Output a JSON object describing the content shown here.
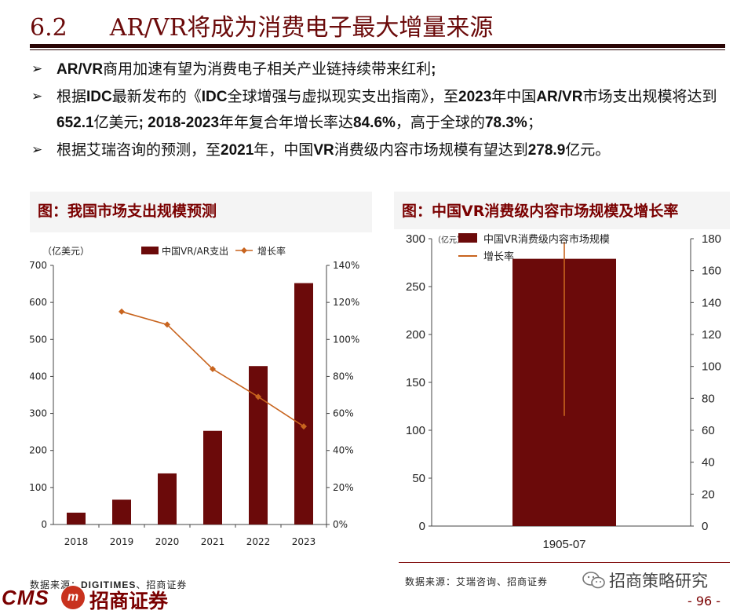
{
  "title": {
    "number": "6.2",
    "text": "AR/VR将成为消费电子最大增量来源"
  },
  "bullets": [
    {
      "parts": [
        {
          "t": "AR/VR",
          "b": true
        },
        {
          "t": "商用加速有望为消费电子相关产业链持续带来红利",
          "b": false
        },
        {
          "t": ";",
          "b": true
        }
      ]
    },
    {
      "parts": [
        {
          "t": "根据",
          "b": false
        },
        {
          "t": "IDC",
          "b": true
        },
        {
          "t": "最新发布的《",
          "b": false
        },
        {
          "t": "IDC",
          "b": true
        },
        {
          "t": "全球增强与虚拟现实支出指南》，至",
          "b": false
        },
        {
          "t": "2023",
          "b": true
        },
        {
          "t": "年中国",
          "b": false
        },
        {
          "t": "AR/VR",
          "b": true
        },
        {
          "t": "市场支出规模将达到",
          "b": false
        },
        {
          "t": "652.1",
          "b": true
        },
        {
          "t": "亿美元",
          "b": false
        },
        {
          "t": "; 2018-2023",
          "b": true
        },
        {
          "t": "年年复合年增长率达",
          "b": false
        },
        {
          "t": "84.6%",
          "b": true
        },
        {
          "t": "，高于全球的",
          "b": false
        },
        {
          "t": "78.3%",
          "b": true
        },
        {
          "t": "；",
          "b": false
        }
      ]
    },
    {
      "parts": [
        {
          "t": "根据艾瑞咨询的预测，至",
          "b": false
        },
        {
          "t": "2021",
          "b": true
        },
        {
          "t": "年，中国",
          "b": false
        },
        {
          "t": "VR",
          "b": true
        },
        {
          "t": "消费级内容市场规模有望达到",
          "b": false
        },
        {
          "t": "278.9",
          "b": true
        },
        {
          "t": "亿元。",
          "b": false
        }
      ]
    }
  ],
  "bullet_marker": "➢",
  "left_panel": {
    "title": "图：我国市场支出规模预测",
    "source_prefix": "数据来源：",
    "source_bold": "DIGITIMES",
    "source_suffix": "、招商证券"
  },
  "right_panel": {
    "title": "图：中国VR消费级内容市场规模及增长率",
    "source": "数据来源：艾瑞咨询、招商证券"
  },
  "footer": {
    "cms": "CMS",
    "emblem": "m",
    "brand": "招商证券",
    "wechat": "招商策略研究",
    "page": "- 96 -"
  },
  "colors": {
    "bar": "#6b0a0a",
    "line": "#c8641e",
    "title": "#6b0a0a"
  },
  "chart_data": [
    {
      "type": "bar",
      "title": "",
      "unit_label": "（亿美元）",
      "categories": [
        "2018",
        "2019",
        "2020",
        "2021",
        "2022",
        "2023"
      ],
      "series": [
        {
          "name": "中国VR/AR支出",
          "kind": "bar",
          "axis": "left",
          "values": [
            32,
            67,
            138,
            253,
            428,
            652.1
          ]
        },
        {
          "name": "增长率",
          "kind": "line",
          "axis": "right",
          "values": [
            null,
            115,
            108,
            84,
            69,
            53
          ]
        }
      ],
      "ylim_left": [
        0,
        700
      ],
      "yticks_left": [
        "0",
        "100",
        "200",
        "300",
        "400",
        "500",
        "600",
        "700"
      ],
      "ylim_right": [
        0,
        140
      ],
      "yticks_right": [
        "0%",
        "20%",
        "40%",
        "60%",
        "80%",
        "100%",
        "120%",
        "140%"
      ],
      "legend": "top",
      "grid": false
    },
    {
      "type": "bar",
      "title": "",
      "unit_label": "（亿元）",
      "categories": [
        "1905-07"
      ],
      "series": [
        {
          "name": "中国VR消费级内容市场规模",
          "kind": "bar",
          "axis": "left",
          "values": [
            279
          ]
        },
        {
          "name": "增长率",
          "kind": "line",
          "axis": "right",
          "values": [
            null
          ]
        }
      ],
      "ylim_left": [
        0,
        300
      ],
      "yticks_left": [
        "0",
        "50",
        "100",
        "150",
        "200",
        "250",
        "300"
      ],
      "ylim_right": [
        0,
        180
      ],
      "yticks_right": [
        "0",
        "20",
        "40",
        "60",
        "80",
        "100",
        "120",
        "140",
        "160",
        "180"
      ],
      "legend": "top-left",
      "grid": false
    }
  ]
}
